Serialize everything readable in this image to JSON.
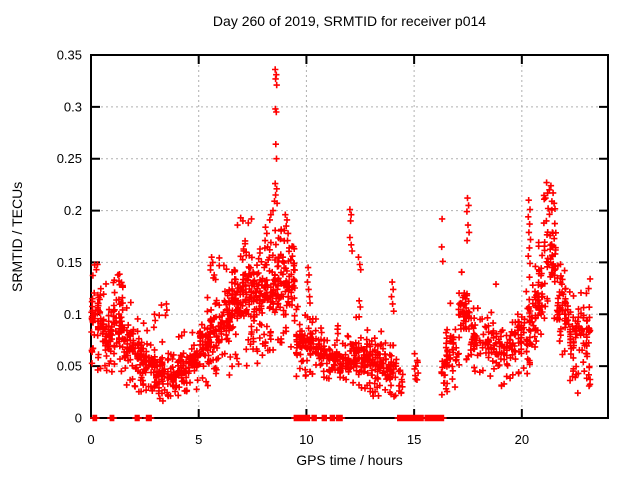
{
  "chart_data": {
    "type": "scatter",
    "title": "Day 260 of 2019, SRMTID for receiver p014",
    "xlabel": "GPS time / hours",
    "ylabel": "SRMTID / TECUs",
    "xlim": [
      0,
      24
    ],
    "ylim": [
      0,
      0.35
    ],
    "xticks": [
      0,
      5,
      10,
      15,
      20
    ],
    "yticks": [
      0,
      0.05,
      0.1,
      0.15,
      0.2,
      0.25,
      0.3,
      0.35
    ],
    "grid": true,
    "legend": "none",
    "marker": {
      "shape": "plus",
      "color": "#ff0000",
      "size": 7
    },
    "grid_color": "#b0b0b0",
    "axis_color": "#000000",
    "background": "#ffffff",
    "seed": 260,
    "bands_format": [
      "x0_hour",
      "x1_hour",
      "count",
      "ymin",
      "ydense_lo",
      "ydense_hi",
      "ymax"
    ],
    "bands": [
      [
        0.0,
        0.5,
        55,
        0.045,
        0.07,
        0.13,
        0.148
      ],
      [
        0.5,
        1.0,
        50,
        0.04,
        0.055,
        0.11,
        0.13
      ],
      [
        1.0,
        1.5,
        55,
        0.04,
        0.06,
        0.12,
        0.14
      ],
      [
        1.5,
        2.0,
        50,
        0.03,
        0.045,
        0.09,
        0.125
      ],
      [
        2.0,
        2.5,
        45,
        0.025,
        0.04,
        0.08,
        0.1
      ],
      [
        2.5,
        3.0,
        45,
        0.02,
        0.035,
        0.07,
        0.1
      ],
      [
        3.0,
        3.5,
        45,
        0.015,
        0.03,
        0.06,
        0.11
      ],
      [
        3.5,
        4.0,
        45,
        0.015,
        0.025,
        0.055,
        0.08
      ],
      [
        4.0,
        4.5,
        45,
        0.02,
        0.03,
        0.06,
        0.085
      ],
      [
        4.5,
        5.0,
        45,
        0.025,
        0.04,
        0.07,
        0.095
      ],
      [
        5.0,
        5.5,
        50,
        0.03,
        0.05,
        0.09,
        0.12
      ],
      [
        5.5,
        6.0,
        55,
        0.04,
        0.06,
        0.11,
        0.155
      ],
      [
        6.0,
        6.5,
        55,
        0.04,
        0.07,
        0.12,
        0.15
      ],
      [
        6.5,
        7.0,
        60,
        0.045,
        0.08,
        0.14,
        0.185
      ],
      [
        7.0,
        7.5,
        65,
        0.05,
        0.09,
        0.15,
        0.19
      ],
      [
        7.5,
        8.0,
        60,
        0.05,
        0.08,
        0.15,
        0.18
      ],
      [
        8.0,
        8.5,
        60,
        0.06,
        0.09,
        0.16,
        0.195
      ],
      [
        8.5,
        9.0,
        55,
        0.07,
        0.09,
        0.18,
        0.2
      ],
      [
        9.0,
        9.5,
        50,
        0.06,
        0.1,
        0.16,
        0.185
      ],
      [
        9.5,
        10.0,
        45,
        0.04,
        0.05,
        0.09,
        0.12
      ],
      [
        10.0,
        10.5,
        45,
        0.04,
        0.05,
        0.095,
        0.12
      ],
      [
        10.5,
        11.0,
        40,
        0.035,
        0.045,
        0.08,
        0.1
      ],
      [
        11.0,
        11.5,
        40,
        0.03,
        0.04,
        0.07,
        0.09
      ],
      [
        11.5,
        12.0,
        40,
        0.03,
        0.04,
        0.07,
        0.09
      ],
      [
        12.0,
        12.5,
        45,
        0.03,
        0.04,
        0.08,
        0.1
      ],
      [
        12.5,
        13.0,
        45,
        0.025,
        0.04,
        0.075,
        0.095
      ],
      [
        13.0,
        13.5,
        45,
        0.02,
        0.035,
        0.07,
        0.09
      ],
      [
        13.5,
        14.2,
        50,
        0.02,
        0.03,
        0.07,
        0.095
      ],
      [
        14.25,
        14.5,
        8,
        0.02,
        0.025,
        0.045,
        0.05
      ],
      [
        15.0,
        15.2,
        6,
        0.035,
        0.04,
        0.06,
        0.065
      ],
      [
        16.25,
        16.45,
        14,
        0.02,
        0.025,
        0.06,
        0.065
      ],
      [
        16.45,
        17.0,
        45,
        0.025,
        0.04,
        0.09,
        0.12
      ],
      [
        17.0,
        17.6,
        55,
        0.05,
        0.07,
        0.13,
        0.165
      ],
      [
        17.6,
        18.5,
        60,
        0.04,
        0.05,
        0.1,
        0.125
      ],
      [
        18.5,
        19.5,
        60,
        0.03,
        0.045,
        0.09,
        0.11
      ],
      [
        19.5,
        20.3,
        55,
        0.04,
        0.05,
        0.1,
        0.13
      ],
      [
        20.3,
        20.7,
        40,
        0.05,
        0.06,
        0.13,
        0.148
      ],
      [
        20.7,
        21.0,
        35,
        0.07,
        0.09,
        0.15,
        0.18
      ],
      [
        21.0,
        21.6,
        55,
        0.09,
        0.12,
        0.2,
        0.218
      ],
      [
        21.6,
        22.2,
        55,
        0.06,
        0.08,
        0.13,
        0.16
      ],
      [
        22.2,
        22.7,
        45,
        0.035,
        0.05,
        0.11,
        0.135
      ],
      [
        22.7,
        23.2,
        45,
        0.03,
        0.05,
        0.12,
        0.135
      ]
    ],
    "notable_points": [
      [
        8.55,
        0.336
      ],
      [
        8.6,
        0.331
      ],
      [
        8.57,
        0.327
      ],
      [
        8.62,
        0.321
      ],
      [
        8.56,
        0.298
      ],
      [
        8.6,
        0.295
      ],
      [
        8.58,
        0.264
      ],
      [
        8.61,
        0.25
      ],
      [
        8.55,
        0.226
      ],
      [
        8.62,
        0.221
      ],
      [
        8.57,
        0.215
      ],
      [
        8.52,
        0.209
      ],
      [
        8.64,
        0.207
      ],
      [
        8.45,
        0.2
      ],
      [
        8.35,
        0.196
      ],
      [
        8.3,
        0.191
      ],
      [
        8.1,
        0.184
      ],
      [
        8.16,
        0.178
      ],
      [
        8.08,
        0.171
      ],
      [
        8.2,
        0.165
      ],
      [
        6.95,
        0.193
      ],
      [
        7.05,
        0.19
      ],
      [
        6.8,
        0.186
      ],
      [
        7.3,
        0.188
      ],
      [
        7.45,
        0.192
      ],
      [
        9.02,
        0.196
      ],
      [
        9.1,
        0.191
      ],
      [
        9.06,
        0.185
      ],
      [
        9.15,
        0.178
      ],
      [
        9.12,
        0.171
      ],
      [
        9.2,
        0.164
      ],
      [
        9.35,
        0.156
      ],
      [
        9.4,
        0.149
      ],
      [
        5.6,
        0.155
      ],
      [
        5.65,
        0.15
      ],
      [
        5.55,
        0.147
      ],
      [
        3.5,
        0.11
      ],
      [
        3.52,
        0.104
      ],
      [
        3.46,
        0.099
      ],
      [
        2.95,
        0.1
      ],
      [
        2.98,
        0.094
      ],
      [
        1.25,
        0.138
      ],
      [
        1.3,
        0.132
      ],
      [
        0.3,
        0.148
      ],
      [
        0.25,
        0.143
      ],
      [
        10.08,
        0.145
      ],
      [
        10.12,
        0.138
      ],
      [
        10.05,
        0.131
      ],
      [
        10.1,
        0.124
      ],
      [
        10.15,
        0.117
      ],
      [
        12.02,
        0.201
      ],
      [
        12.08,
        0.196
      ],
      [
        12.05,
        0.19
      ],
      [
        12.02,
        0.174
      ],
      [
        12.08,
        0.167
      ],
      [
        12.12,
        0.161
      ],
      [
        12.42,
        0.155
      ],
      [
        12.48,
        0.148
      ],
      [
        12.52,
        0.143
      ],
      [
        12.45,
        0.113
      ],
      [
        12.5,
        0.107
      ],
      [
        13.98,
        0.131
      ],
      [
        14.03,
        0.124
      ],
      [
        13.95,
        0.117
      ],
      [
        14.0,
        0.11
      ],
      [
        14.05,
        0.103
      ],
      [
        16.3,
        0.192
      ],
      [
        16.28,
        0.165
      ],
      [
        16.33,
        0.151
      ],
      [
        17.48,
        0.212
      ],
      [
        17.53,
        0.205
      ],
      [
        17.45,
        0.199
      ],
      [
        17.5,
        0.186
      ],
      [
        17.55,
        0.179
      ],
      [
        17.46,
        0.171
      ],
      [
        18.8,
        0.129
      ],
      [
        20.32,
        0.21
      ],
      [
        20.38,
        0.201
      ],
      [
        20.3,
        0.194
      ],
      [
        20.36,
        0.187
      ],
      [
        20.33,
        0.179
      ],
      [
        20.4,
        0.172
      ],
      [
        20.35,
        0.164
      ],
      [
        20.3,
        0.156
      ],
      [
        20.38,
        0.149
      ],
      [
        21.15,
        0.227
      ],
      [
        21.35,
        0.224
      ],
      [
        21.28,
        0.22
      ],
      [
        21.45,
        0.217
      ],
      [
        21.1,
        0.212
      ],
      [
        21.5,
        0.207
      ],
      [
        21.22,
        0.202
      ],
      [
        22.6,
        0.024
      ],
      [
        15.02,
        0.062
      ],
      [
        15.08,
        0.05
      ],
      [
        15.05,
        0.041
      ],
      [
        14.35,
        0.046
      ],
      [
        14.3,
        0.031
      ],
      [
        14.4,
        0.024
      ]
    ],
    "zero_value_segments": [
      [
        0.1,
        0.26
      ],
      [
        0.9,
        1.06
      ],
      [
        2.06,
        2.12
      ],
      [
        2.17,
        2.23
      ],
      [
        2.58,
        2.8
      ],
      [
        9.44,
        9.56
      ],
      [
        9.6,
        10.16
      ],
      [
        10.27,
        10.46
      ],
      [
        10.74,
        10.92
      ],
      [
        11.12,
        11.3
      ],
      [
        11.41,
        11.66
      ],
      [
        14.24,
        14.6
      ],
      [
        14.66,
        14.96
      ],
      [
        15.02,
        15.42
      ],
      [
        15.52,
        15.66
      ],
      [
        15.7,
        16.36
      ]
    ]
  }
}
